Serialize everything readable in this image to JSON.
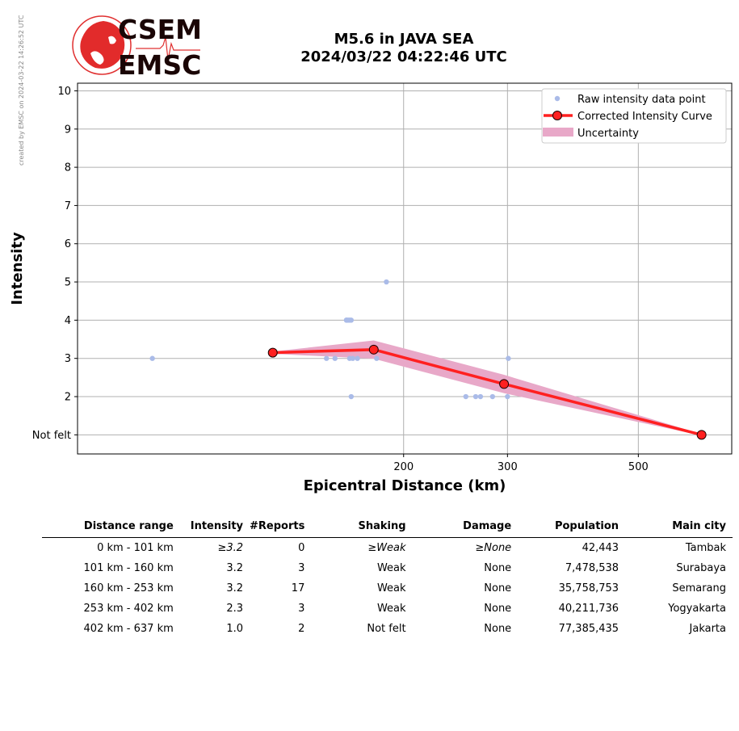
{
  "logo": {
    "line1": "CSEM",
    "line2": "EMSC"
  },
  "credit": "created by EMSC on 2024-03-22 14:26:52 UTC",
  "title": {
    "line1": "M5.6 in JAVA SEA",
    "line2": "2024/03/22 04:22:46 UTC"
  },
  "colors": {
    "raw": "#aabbe8",
    "curve": "#ff2020",
    "uncertainty": "#e8a8c8",
    "marker_edge": "#1a0000"
  },
  "chart_data": {
    "type": "line",
    "xlabel": "Epicentral Distance (km)",
    "ylabel": "Intensity",
    "xscale": "log",
    "xlim": [
      56,
      720
    ],
    "ylim": [
      0.5,
      10.2
    ],
    "xticks": [
      200,
      300,
      500
    ],
    "yticks": [
      1,
      2,
      3,
      4,
      5,
      6,
      7,
      8,
      9,
      10
    ],
    "ytick_labels": [
      "Not felt",
      "2",
      "3",
      "4",
      "5",
      "6",
      "7",
      "8",
      "9",
      "10"
    ],
    "grid": true,
    "legend": {
      "placement": "top-right",
      "entries": [
        "Raw intensity data point",
        "Corrected Intensity Curve",
        "Uncertainty"
      ]
    },
    "series": [
      {
        "name": "Raw intensity data point",
        "kind": "scatter",
        "x": [
          75,
          148,
          153,
          160,
          160,
          161,
          162,
          162,
          163,
          164,
          163,
          167,
          180,
          187,
          255,
          265,
          270,
          283,
          300,
          301
        ],
        "y": [
          3,
          3,
          3,
          4,
          4,
          4,
          4,
          3,
          4,
          3,
          2,
          3,
          3,
          5,
          2,
          2,
          2,
          2,
          2,
          3
        ]
      },
      {
        "name": "Corrected Intensity Curve",
        "kind": "line",
        "x": [
          120,
          178,
          296,
          640
        ],
        "y": [
          3.15,
          3.23,
          2.33,
          1.0
        ]
      },
      {
        "name": "Uncertainty",
        "kind": "band",
        "x": [
          120,
          178,
          296,
          640
        ],
        "lower": [
          3.12,
          2.99,
          2.09,
          0.98
        ],
        "upper": [
          3.18,
          3.47,
          2.57,
          1.02
        ]
      }
    ]
  },
  "table": {
    "headers": [
      "Distance range",
      "Intensity",
      "#Reports",
      "Shaking",
      "Damage",
      "Population",
      "Main city"
    ],
    "rows": [
      [
        "0 km -  101 km",
        "≥3.2",
        "0",
        "≥Weak",
        "≥None",
        "42,443",
        "Tambak"
      ],
      [
        "101 km -  160 km",
        "3.2",
        "3",
        "Weak",
        "None",
        "7,478,538",
        "Surabaya"
      ],
      [
        "160 km -  253 km",
        "3.2",
        "17",
        "Weak",
        "None",
        "35,758,753",
        "Semarang"
      ],
      [
        "253 km -  402 km",
        "2.3",
        "3",
        "Weak",
        "None",
        "40,211,736",
        "Yogyakarta"
      ],
      [
        "402 km -  637 km",
        "1.0",
        "2",
        "Not felt",
        "None",
        "77,385,435",
        "Jakarta"
      ]
    ]
  }
}
